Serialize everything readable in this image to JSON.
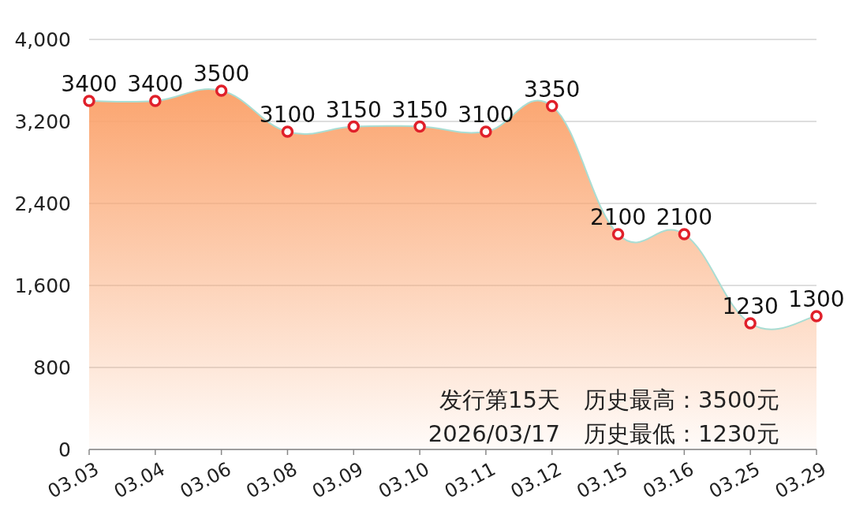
{
  "chart_data": {
    "type": "area",
    "categories": [
      "03.03",
      "03.04",
      "03.06",
      "03.08",
      "03.09",
      "03.10",
      "03.11",
      "03.12",
      "03.15",
      "03.16",
      "03.25",
      "03.29"
    ],
    "series": [
      {
        "color": "#fba46e",
        "values": [
          3400,
          3400,
          3500,
          3100,
          3150,
          3150,
          3100,
          3350,
          2100,
          2100,
          1230,
          1300
        ]
      }
    ],
    "ylim": [
      0,
      4000
    ],
    "yticks": [
      0,
      800,
      {
        "value": 1600,
        "label": "1,600"
      },
      {
        "value": 2400,
        "label": "2,400"
      },
      {
        "value": 3200,
        "label": "3,200"
      },
      {
        "value": 4000,
        "label": "4,000"
      }
    ],
    "grid": "y",
    "marker": "circle",
    "data_labels": true,
    "annotations": [
      "发行第15天",
      "2026/03/17",
      "历史最高：3500元",
      "历史最低：1230元"
    ]
  }
}
